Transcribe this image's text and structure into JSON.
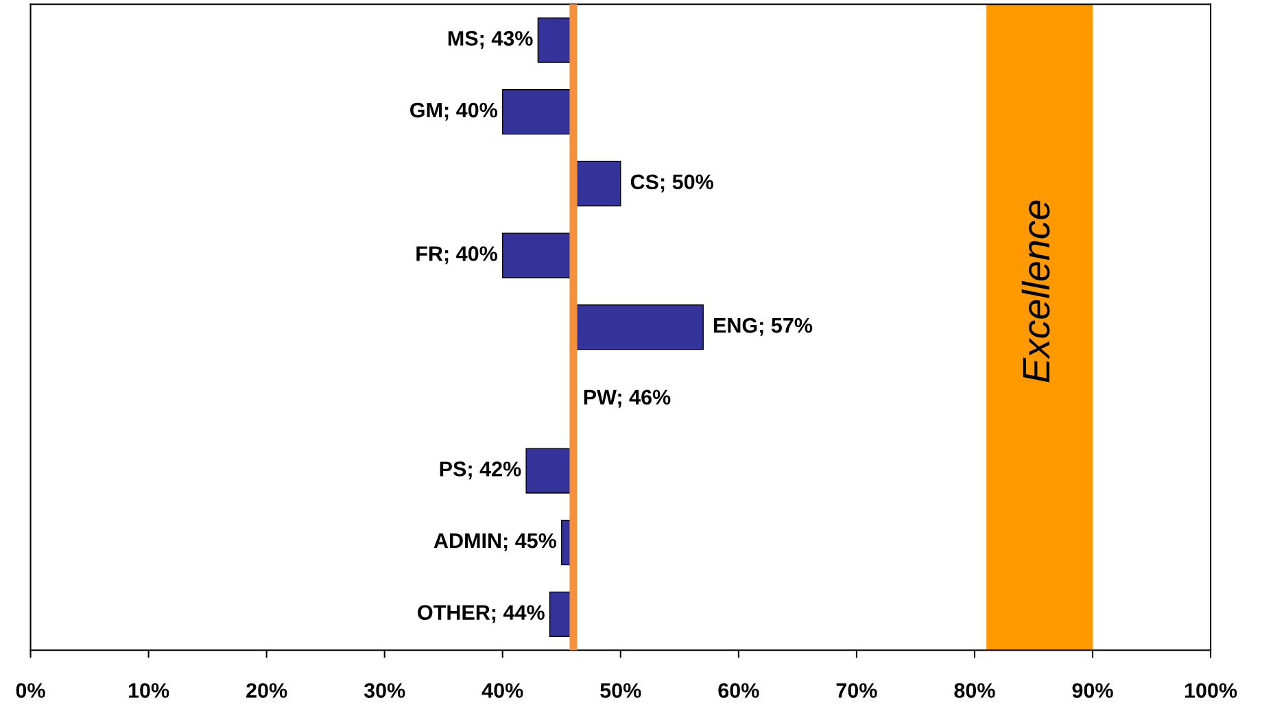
{
  "chart_data": {
    "type": "bar",
    "orientation": "horizontal",
    "categories": [
      null,
      null,
      null,
      null,
      null,
      null,
      null,
      null,
      null
    ],
    "base": [
      46,
      46,
      46,
      46,
      46,
      null,
      46,
      46,
      46
    ],
    "values": [
      -3,
      -6,
      4,
      -6,
      11,
      null,
      -4,
      -1,
      -2
    ],
    "value_labels": [
      "MS; 43%",
      "GM; 40%",
      "CS; 50%",
      "FR; 40%",
      "ENG; 57%",
      "PW; 46%",
      "PS; 42%",
      "ADMIN; 45%",
      "OTHER; 44%"
    ],
    "color": "#333399",
    "xlim": [
      0,
      100
    ],
    "xticks": [
      {
        "value": 0,
        "label": "0%"
      },
      {
        "value": 10,
        "label": "10%"
      },
      {
        "value": 20,
        "label": "20%"
      },
      {
        "value": 30,
        "label": "30%"
      },
      {
        "value": 40,
        "label": "40%"
      },
      {
        "value": 50,
        "label": "50%"
      },
      {
        "value": 60,
        "label": "60%"
      },
      {
        "value": 70,
        "label": "70%"
      },
      {
        "value": 80,
        "label": "80%"
      },
      {
        "value": 90,
        "label": "90%"
      },
      {
        "value": 100,
        "label": "100%"
      }
    ],
    "tick_labels": "x",
    "grid": false,
    "ref_lines": [
      {
        "axis": "x",
        "value": 46,
        "color": "#f4913a"
      }
    ],
    "bands": [
      {
        "axis": "x",
        "from": 81,
        "to": 90,
        "label": "Excellence",
        "color": "#ff9900"
      }
    ]
  }
}
